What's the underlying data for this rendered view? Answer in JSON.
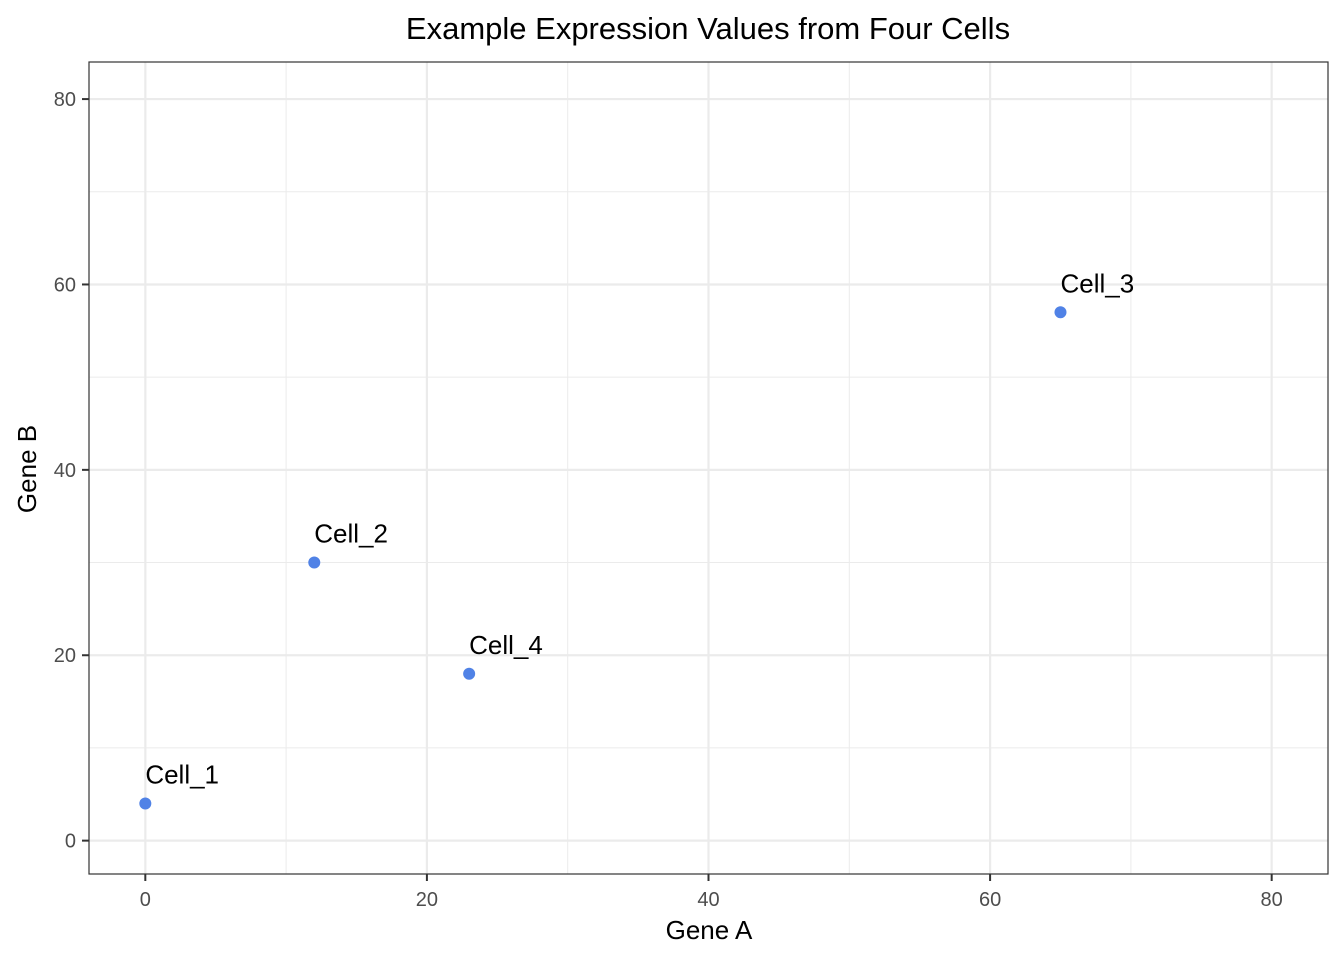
{
  "chart_data": {
    "type": "scatter",
    "title": "Example Expression Values from Four Cells",
    "xlabel": "Gene A",
    "ylabel": "Gene B",
    "xlim": [
      -4,
      84
    ],
    "ylim": [
      -3.6,
      84
    ],
    "xticks": [
      0,
      20,
      40,
      60,
      80
    ],
    "yticks": [
      0,
      20,
      40,
      60,
      80
    ],
    "grid": true,
    "point_color": "#5082E6",
    "points": [
      {
        "label": "Cell_1",
        "x": 0,
        "y": 4
      },
      {
        "label": "Cell_2",
        "x": 12,
        "y": 30
      },
      {
        "label": "Cell_3",
        "x": 65,
        "y": 57
      },
      {
        "label": "Cell_4",
        "x": 23,
        "y": 18
      }
    ]
  }
}
